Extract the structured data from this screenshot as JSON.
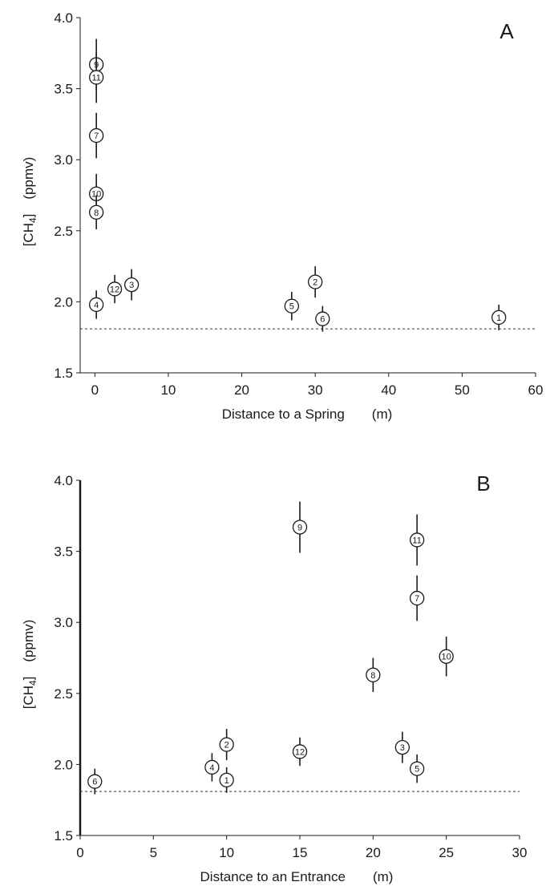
{
  "chart_data": [
    {
      "panel_label": "A",
      "type": "scatter",
      "xlabel": "Distance to a Spring",
      "xunit": "(m)",
      "ylabel_main": "[CH",
      "ylabel_sub": "4",
      "ylabel_close": "]",
      "yunit": "(ppmv)",
      "xlim": [
        -2,
        60
      ],
      "ylim": [
        1.5,
        4.0
      ],
      "x_ticks": [
        "0",
        "10",
        "20",
        "30",
        "40",
        "50",
        "60"
      ],
      "y_ticks": [
        "1.5",
        "2.0",
        "2.5",
        "3.0",
        "3.5",
        "4.0"
      ],
      "baseline_value": 1.81,
      "points": [
        {
          "id": "9",
          "x": 0.2,
          "y": 3.67,
          "err": 0.18
        },
        {
          "id": "11",
          "x": 0.2,
          "y": 3.58,
          "err": 0.18
        },
        {
          "id": "7",
          "x": 0.2,
          "y": 3.17,
          "err": 0.16
        },
        {
          "id": "10",
          "x": 0.2,
          "y": 2.76,
          "err": 0.14
        },
        {
          "id": "8",
          "x": 0.2,
          "y": 2.63,
          "err": 0.12
        },
        {
          "id": "4",
          "x": 0.2,
          "y": 1.98,
          "err": 0.1
        },
        {
          "id": "12",
          "x": 2.7,
          "y": 2.09,
          "err": 0.1
        },
        {
          "id": "3",
          "x": 5.0,
          "y": 2.12,
          "err": 0.11
        },
        {
          "id": "5",
          "x": 26.8,
          "y": 1.97,
          "err": 0.1
        },
        {
          "id": "2",
          "x": 30.0,
          "y": 2.14,
          "err": 0.11
        },
        {
          "id": "6",
          "x": 31.0,
          "y": 1.88,
          "err": 0.09
        },
        {
          "id": "1",
          "x": 55.0,
          "y": 1.89,
          "err": 0.09
        }
      ]
    },
    {
      "panel_label": "B",
      "type": "scatter",
      "xlabel": "Distance to an Entrance",
      "xunit": "(m)",
      "ylabel_main": "[CH",
      "ylabel_sub": "4",
      "ylabel_close": "]",
      "yunit": "(ppmv)",
      "xlim": [
        0,
        30
      ],
      "ylim": [
        1.5,
        4.0
      ],
      "x_ticks": [
        "0",
        "5",
        "10",
        "15",
        "20",
        "25",
        "30"
      ],
      "y_ticks": [
        "1.5",
        "2.0",
        "2.5",
        "3.0",
        "3.5",
        "4.0"
      ],
      "baseline_value": 1.81,
      "points": [
        {
          "id": "6",
          "x": 1.0,
          "y": 1.88,
          "err": 0.09
        },
        {
          "id": "4",
          "x": 9.0,
          "y": 1.98,
          "err": 0.1
        },
        {
          "id": "2",
          "x": 10.0,
          "y": 2.14,
          "err": 0.11
        },
        {
          "id": "1",
          "x": 10.0,
          "y": 1.89,
          "err": 0.09
        },
        {
          "id": "9",
          "x": 15.0,
          "y": 3.67,
          "err": 0.18
        },
        {
          "id": "12",
          "x": 15.0,
          "y": 2.09,
          "err": 0.1
        },
        {
          "id": "8",
          "x": 20.0,
          "y": 2.63,
          "err": 0.12
        },
        {
          "id": "3",
          "x": 22.0,
          "y": 2.12,
          "err": 0.11
        },
        {
          "id": "11",
          "x": 23.0,
          "y": 3.58,
          "err": 0.18
        },
        {
          "id": "7",
          "x": 23.0,
          "y": 3.17,
          "err": 0.16
        },
        {
          "id": "5",
          "x": 23.0,
          "y": 1.97,
          "err": 0.1
        },
        {
          "id": "10",
          "x": 25.0,
          "y": 2.76,
          "err": 0.14
        }
      ]
    }
  ]
}
